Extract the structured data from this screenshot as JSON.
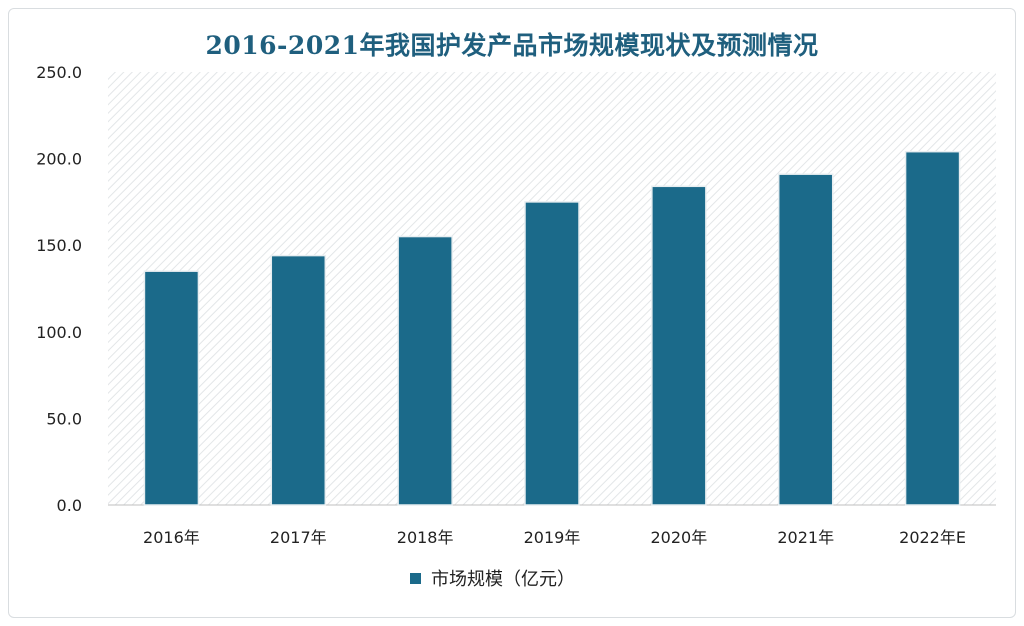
{
  "chart_data": {
    "type": "bar",
    "title": "2016-2021年我国护发产品市场规模现状及预测情况",
    "categories": [
      "2016年",
      "2017年",
      "2018年",
      "2019年",
      "2020年",
      "2021年",
      "2022年E"
    ],
    "series": [
      {
        "name": "市场规模（亿元）",
        "values": [
          135,
          144,
          155,
          175,
          184,
          191,
          204
        ]
      }
    ],
    "ylim": [
      0,
      250
    ],
    "yticks": [
      "0.0",
      "50.0",
      "100.0",
      "150.0",
      "200.0",
      "250.0"
    ],
    "ytick_values": [
      0,
      50,
      100,
      150,
      200,
      250
    ],
    "bar_color": "#1b6a8a",
    "grid": false,
    "legend_position": "bottom"
  }
}
